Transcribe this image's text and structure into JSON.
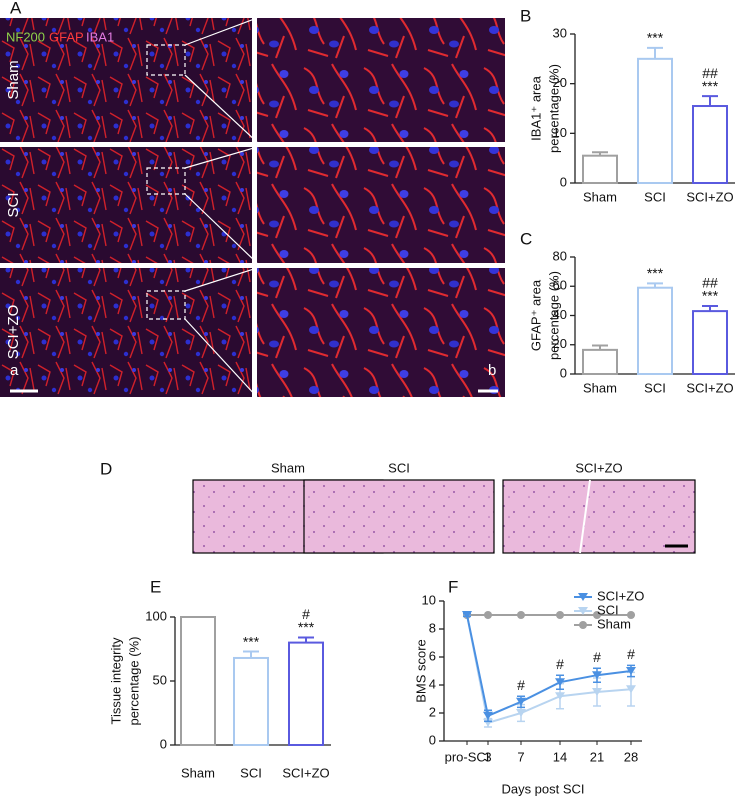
{
  "figure": {
    "panel_A": "A",
    "stains": [
      {
        "text": "NF200",
        "color": "#8ed14a"
      },
      {
        "text": "GFAP",
        "color": "#ff3b3b"
      },
      {
        "text": "IBA1",
        "color": "#e07ae0"
      }
    ],
    "rows": [
      "Sham",
      "SCI",
      "SCI+ZO"
    ],
    "image_labels": [
      "a",
      "b"
    ],
    "panel_D": "D",
    "he_labels": [
      "Sham",
      "SCI",
      "SCI+ZO"
    ]
  },
  "chart_data": [
    {
      "type": "bar",
      "panel": "B",
      "ylabel": [
        "IBA1⁺ area",
        "percentage (%)"
      ],
      "categories": [
        "Sham",
        "SCI",
        "SCI+ZO"
      ],
      "values": [
        5.5,
        25,
        15.5
      ],
      "errors": [
        0.7,
        2.2,
        2
      ],
      "colors": [
        "#a0a0a0",
        "#a9c9f0",
        "#5a5adf"
      ],
      "annotations": [
        [],
        [
          "***"
        ],
        [
          "***",
          "##"
        ]
      ],
      "ylim": [
        0,
        30
      ],
      "yticks": [
        0,
        10,
        20,
        30
      ]
    },
    {
      "type": "bar",
      "panel": "C",
      "ylabel": [
        "GFAP⁺ area",
        "percentage (%)"
      ],
      "categories": [
        "Sham",
        "SCI",
        "SCI+ZO"
      ],
      "values": [
        16.5,
        59,
        43
      ],
      "errors": [
        3,
        3,
        3.5
      ],
      "colors": [
        "#a0a0a0",
        "#a9c9f0",
        "#5a5adf"
      ],
      "annotations": [
        [],
        [
          "***"
        ],
        [
          "***",
          "##"
        ]
      ],
      "ylim": [
        0,
        80
      ],
      "yticks": [
        0,
        20,
        40,
        60,
        80
      ]
    },
    {
      "type": "bar",
      "panel": "E",
      "ylabel": [
        "Tissue integrity",
        "percentage (%)"
      ],
      "categories": [
        "Sham",
        "SCI",
        "SCI+ZO"
      ],
      "values": [
        100,
        68,
        80
      ],
      "errors": [
        null,
        5,
        4
      ],
      "colors": [
        "#a0a0a0",
        "#a9c9f0",
        "#5a5adf"
      ],
      "annotations": [
        [],
        [
          "***"
        ],
        [
          "***",
          "#"
        ]
      ],
      "ylim": [
        0,
        100
      ],
      "yticks": [
        0,
        50,
        100
      ]
    },
    {
      "type": "line",
      "panel": "F",
      "ylabel": [
        "BMS score"
      ],
      "xlabel": "Days post SCI",
      "categories": [
        "pro-SCI",
        "3",
        "7",
        "14",
        "21",
        "28"
      ],
      "series": [
        {
          "name": "SCI+ZO",
          "color": "#4a90e2",
          "marker": "triangle-down",
          "values": [
            9,
            1.8,
            2.8,
            4.2,
            4.7,
            5
          ],
          "errors": [
            0.1,
            0.4,
            0.4,
            0.5,
            0.5,
            0.4
          ]
        },
        {
          "name": "SCI",
          "color": "#b8d4f0",
          "marker": "triangle-down",
          "values": [
            9,
            1.3,
            2,
            3.2,
            3.5,
            3.7
          ],
          "errors": [
            0.1,
            0.3,
            0.6,
            0.9,
            1,
            1.2
          ]
        },
        {
          "name": "Sham",
          "color": "#a0a0a0",
          "marker": "circle",
          "values": [
            9,
            9,
            9,
            9,
            9,
            9
          ],
          "errors": [
            0,
            0,
            0,
            0,
            0,
            0
          ]
        }
      ],
      "annotations": [
        null,
        null,
        "#",
        "#",
        "#",
        "#"
      ],
      "ylim": [
        0,
        10
      ],
      "yticks": [
        0,
        2,
        4,
        6,
        8,
        10
      ]
    }
  ]
}
